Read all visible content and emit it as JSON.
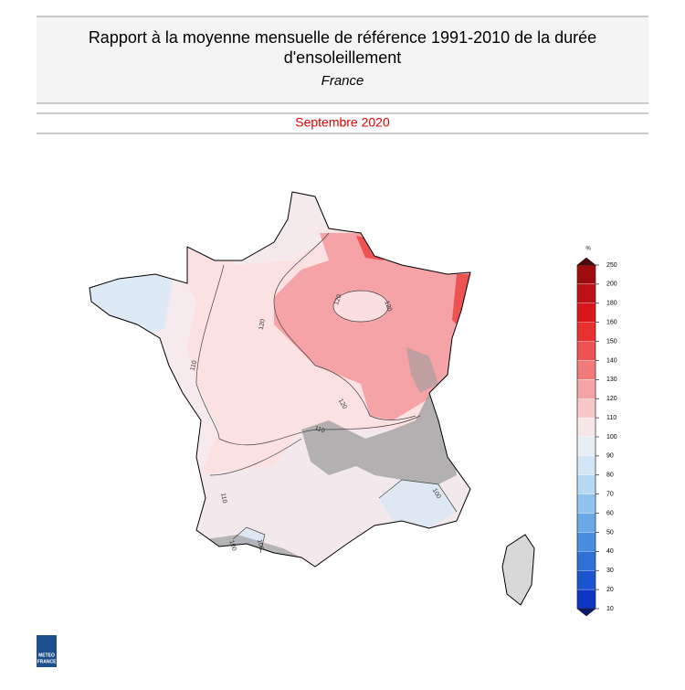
{
  "header": {
    "title": "Rapport à la moyenne mensuelle de référence 1991-2010 de la durée d'ensoleillement",
    "subtitle": "France",
    "period": "Septembre 2020"
  },
  "legend": {
    "unit": "%",
    "ticks": [
      250,
      200,
      180,
      160,
      150,
      140,
      130,
      120,
      110,
      100,
      90,
      80,
      70,
      60,
      50,
      40,
      30,
      20,
      10
    ],
    "colors": [
      "#9e0c10",
      "#bd1116",
      "#d9161b",
      "#e8302f",
      "#ee5353",
      "#f27a7b",
      "#f5a3a5",
      "#f8c6c7",
      "#f7e6e8",
      "#e8eef5",
      "#d3e6f6",
      "#b7d9f3",
      "#92c3ee",
      "#6aa9e7",
      "#4a8de0",
      "#2e70d8",
      "#1a54cf",
      "#0e35c4"
    ],
    "top_color": "#4a0608",
    "bottom_color": "#0b1a6a"
  },
  "map": {
    "contour_labels": [
      "120",
      "120",
      "120",
      "120",
      "110",
      "110",
      "110",
      "100",
      "100",
      "100"
    ]
  },
  "logo": {
    "line1": "METEO",
    "line2": "FRANCE"
  }
}
